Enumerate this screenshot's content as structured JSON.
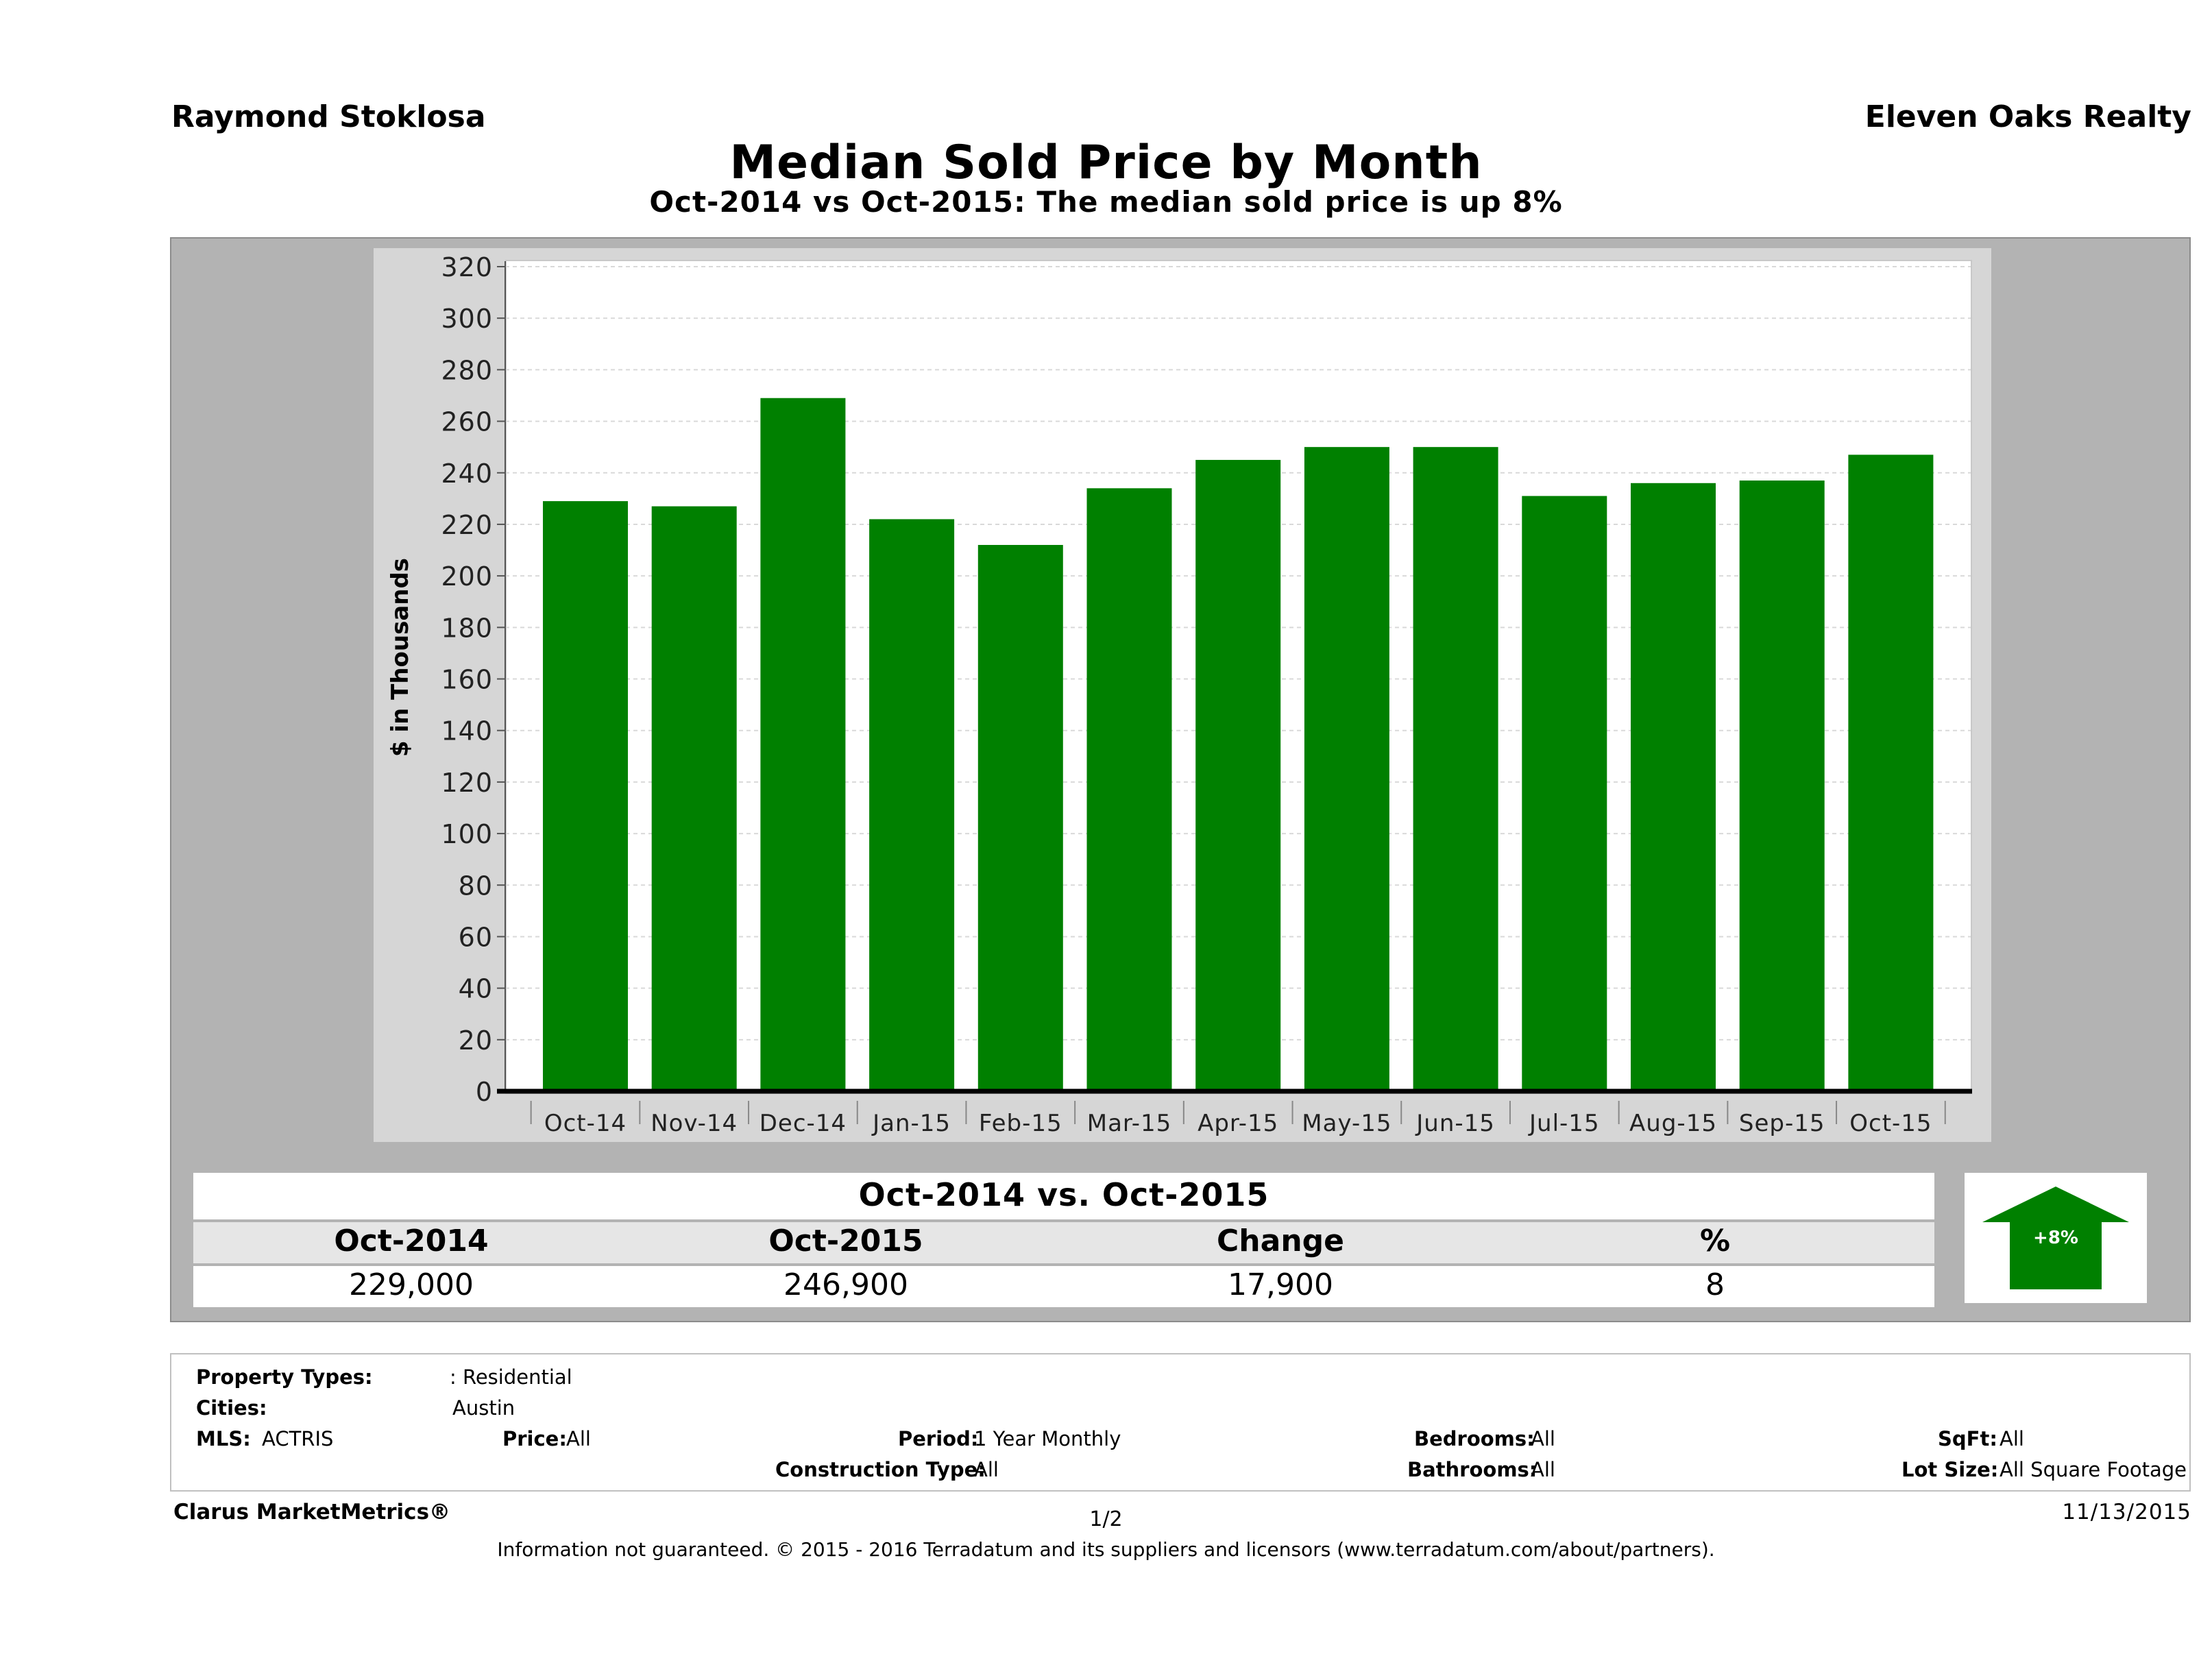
{
  "header": {
    "agent": "Raymond Stoklosa",
    "brokerage": "Eleven Oaks Realty",
    "title": "Median Sold Price by Month",
    "subtitle": "Oct-2014 vs Oct-2015: The median sold price is up 8%"
  },
  "chart_data": {
    "type": "bar",
    "categories": [
      "Oct-14",
      "Nov-14",
      "Dec-14",
      "Jan-15",
      "Feb-15",
      "Mar-15",
      "Apr-15",
      "May-15",
      "Jun-15",
      "Jul-15",
      "Aug-15",
      "Sep-15",
      "Oct-15"
    ],
    "values": [
      229,
      227,
      269,
      222,
      212,
      234,
      245,
      250,
      250,
      231,
      236,
      237,
      247
    ],
    "ylabel": "$ in Thousands",
    "ylim": [
      0,
      320
    ],
    "yticks": [
      0,
      20,
      40,
      60,
      80,
      100,
      120,
      140,
      160,
      180,
      200,
      220,
      240,
      260,
      280,
      300,
      320
    ],
    "grid": true,
    "bar_color": "#008000",
    "legend": "none"
  },
  "summary": {
    "title": "Oct-2014 vs. Oct-2015",
    "headers": [
      "Oct-2014",
      "Oct-2015",
      "Change",
      "%"
    ],
    "values": [
      "229,000",
      "246,900",
      "17,900",
      "8"
    ],
    "arrow_label": "+8%",
    "arrow_color": "#008000",
    "arrow_direction": "up"
  },
  "criteria": {
    "property_types_label": "Property Types:",
    "property_types_value": ": Residential",
    "cities_label": "Cities:",
    "cities_value": "Austin",
    "mls_label": "MLS:",
    "mls_value": "ACTRIS",
    "price_label": "Price:",
    "price_value": "All",
    "period_label": "Period:",
    "period_value": "1 Year Monthly",
    "construction_label": "Construction Type:",
    "construction_value": "All",
    "bedrooms_label": "Bedrooms:",
    "bedrooms_value": "All",
    "bathrooms_label": "Bathrooms:",
    "bathrooms_value": "All",
    "sqft_label": "SqFt:",
    "sqft_value": "All",
    "lotsize_label": "Lot Size:",
    "lotsize_value": "All Square Footage"
  },
  "footer": {
    "brand": "Clarus MarketMetrics®",
    "page": "1/2",
    "date": "11/13/2015",
    "disclaimer": "Information not guaranteed. © 2015 - 2016 Terradatum and its suppliers and licensors (www.terradatum.com/about/partners)."
  }
}
